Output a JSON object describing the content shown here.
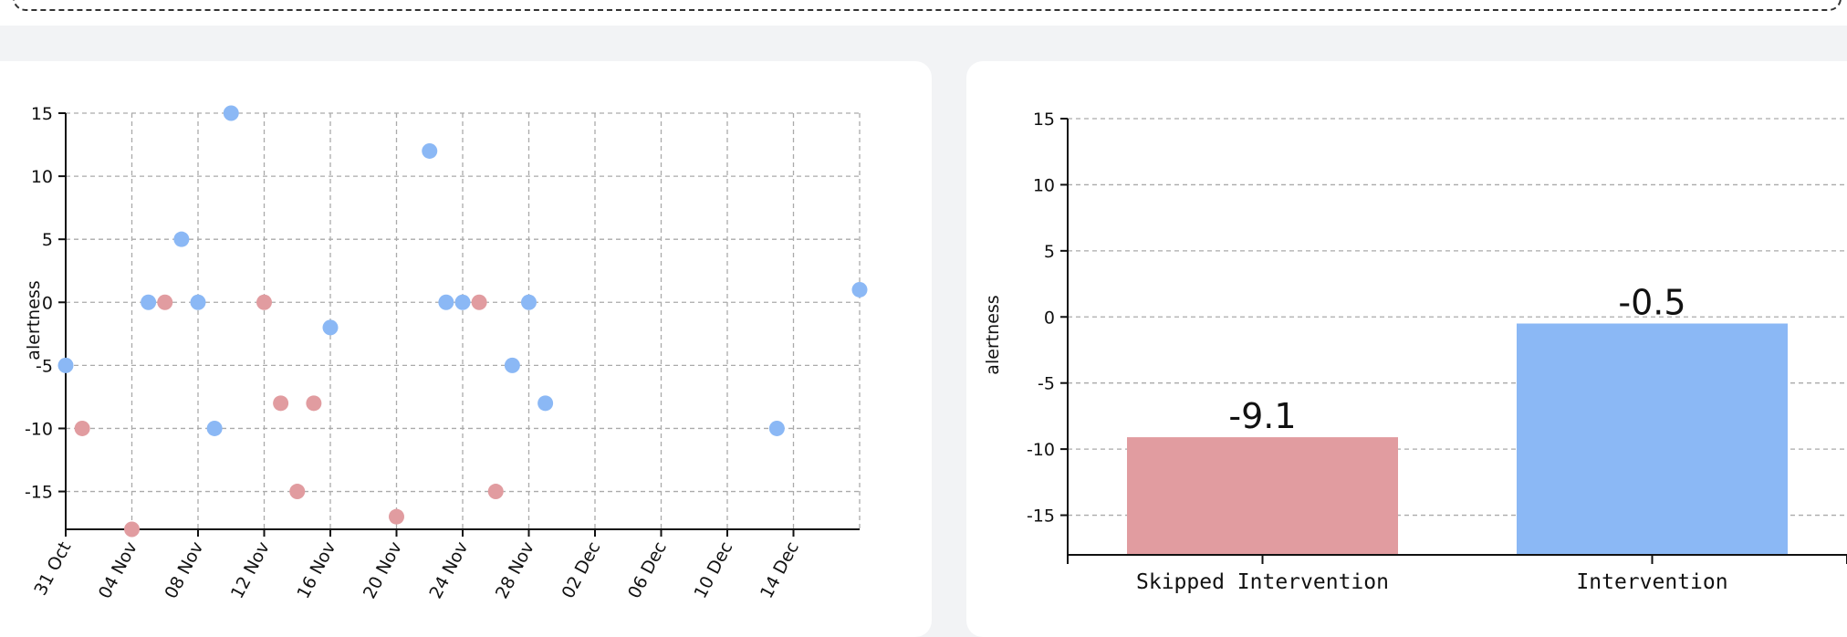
{
  "chart_data": [
    {
      "type": "scatter",
      "xlabel": "",
      "ylabel": "alertness",
      "yticks": [
        15,
        10,
        5,
        0,
        -5,
        -10,
        -15
      ],
      "ylim": [
        -18,
        15
      ],
      "xlim": [
        "2023-10-31",
        "2023-12-18"
      ],
      "xticks": [
        "31 Oct",
        "04 Nov",
        "08 Nov",
        "12 Nov",
        "16 Nov",
        "20 Nov",
        "24 Nov",
        "28 Nov",
        "02 Dec",
        "06 Dec",
        "10 Dec",
        "14 Dec"
      ],
      "grid": true,
      "series": [
        {
          "color": "#8bb8f5",
          "points": [
            {
              "x": "2023-10-31",
              "y": -5
            },
            {
              "x": "2023-11-05",
              "y": 0
            },
            {
              "x": "2023-11-07",
              "y": 5
            },
            {
              "x": "2023-11-08",
              "y": 0
            },
            {
              "x": "2023-11-09",
              "y": -10
            },
            {
              "x": "2023-11-10",
              "y": 15
            },
            {
              "x": "2023-11-16",
              "y": -2
            },
            {
              "x": "2023-11-22",
              "y": 12
            },
            {
              "x": "2023-11-23",
              "y": 0
            },
            {
              "x": "2023-11-24",
              "y": 0
            },
            {
              "x": "2023-11-27",
              "y": -5
            },
            {
              "x": "2023-11-28",
              "y": 0
            },
            {
              "x": "2023-11-29",
              "y": -8
            },
            {
              "x": "2023-12-13",
              "y": -10
            },
            {
              "x": "2023-12-18",
              "y": 1
            }
          ]
        },
        {
          "color": "#e19ca0",
          "points": [
            {
              "x": "2023-11-01",
              "y": -10
            },
            {
              "x": "2023-11-04",
              "y": -18
            },
            {
              "x": "2023-11-06",
              "y": 0
            },
            {
              "x": "2023-11-12",
              "y": 0
            },
            {
              "x": "2023-11-13",
              "y": -8
            },
            {
              "x": "2023-11-14",
              "y": -15
            },
            {
              "x": "2023-11-15",
              "y": -8
            },
            {
              "x": "2023-11-20",
              "y": -17
            },
            {
              "x": "2023-11-25",
              "y": 0
            },
            {
              "x": "2023-11-26",
              "y": -15
            }
          ]
        }
      ]
    },
    {
      "type": "bar",
      "xlabel": "",
      "ylabel": "alertness",
      "categories": [
        "Skipped Intervention",
        "Intervention"
      ],
      "values": [
        -9.1,
        -0.5
      ],
      "value_labels": [
        "-9.1",
        "-0.5"
      ],
      "colors": [
        "#e19ca0",
        "#8bb8f5"
      ],
      "yticks": [
        15,
        10,
        5,
        0,
        -5,
        -10,
        -15
      ],
      "ylim": [
        -18,
        15
      ],
      "grid": true
    }
  ]
}
